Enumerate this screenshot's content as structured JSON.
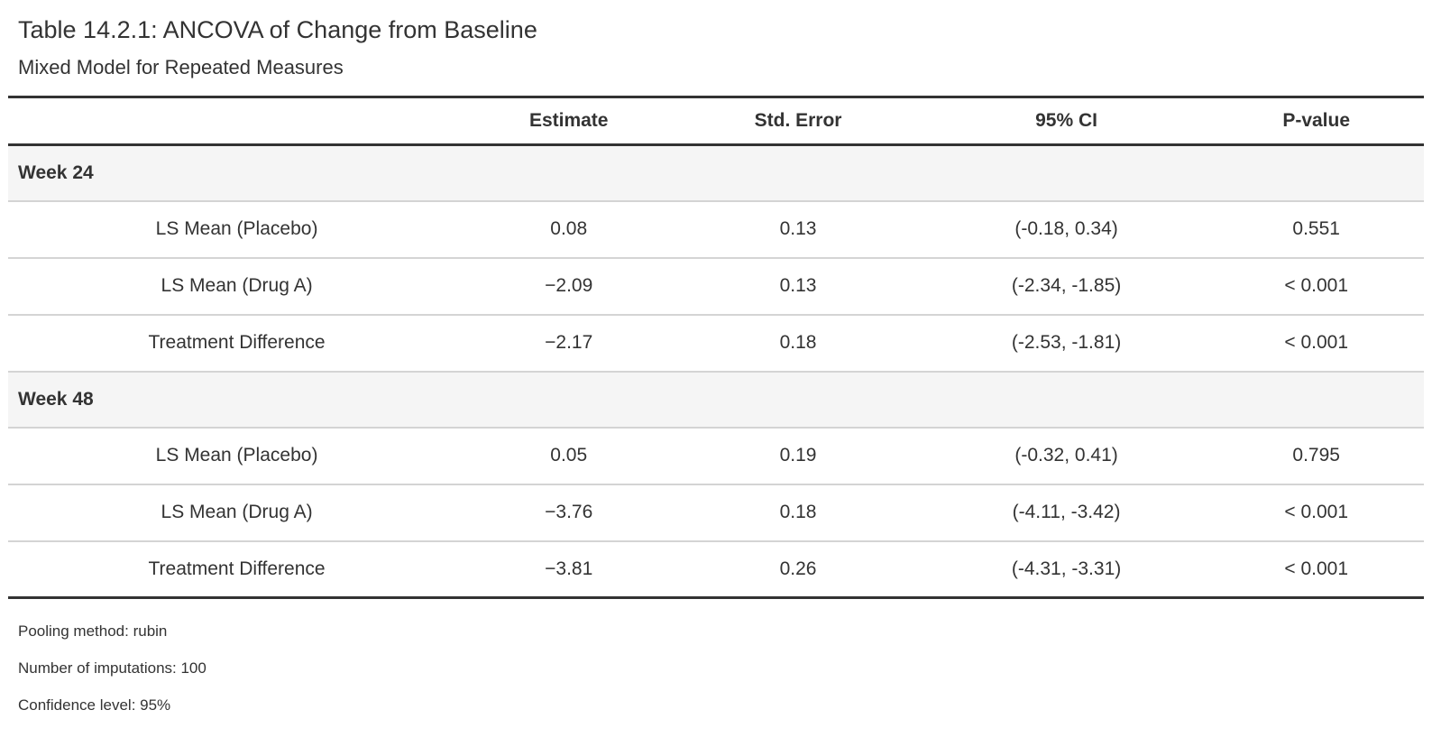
{
  "page": {
    "title": "Table 14.2.1: ANCOVA of Change from Baseline",
    "subtitle": "Mixed Model for Repeated Measures"
  },
  "table": {
    "columns": [
      "",
      "Estimate",
      "Std. Error",
      "95% CI",
      "P-value"
    ],
    "groups": [
      {
        "label": "Week 24",
        "rows": [
          {
            "label": "LS Mean (Placebo)",
            "estimate": "0.08",
            "std_error": "0.13",
            "ci": "(-0.18, 0.34)",
            "p_value": "0.551"
          },
          {
            "label": "LS Mean (Drug A)",
            "estimate": "−2.09",
            "std_error": "0.13",
            "ci": "(-2.34, -1.85)",
            "p_value": "< 0.001"
          },
          {
            "label": "Treatment Difference",
            "estimate": "−2.17",
            "std_error": "0.18",
            "ci": "(-2.53, -1.81)",
            "p_value": "< 0.001"
          }
        ]
      },
      {
        "label": "Week 48",
        "rows": [
          {
            "label": "LS Mean (Placebo)",
            "estimate": "0.05",
            "std_error": "0.19",
            "ci": "(-0.32, 0.41)",
            "p_value": "0.795"
          },
          {
            "label": "LS Mean (Drug A)",
            "estimate": "−3.76",
            "std_error": "0.18",
            "ci": "(-4.11, -3.42)",
            "p_value": "< 0.001"
          },
          {
            "label": "Treatment Difference",
            "estimate": "−3.81",
            "std_error": "0.26",
            "ci": "(-4.31, -3.31)",
            "p_value": "< 0.001"
          }
        ]
      }
    ]
  },
  "footnotes": [
    "Pooling method: rubin",
    "Number of imputations: 100",
    "Confidence level: 95%"
  ],
  "colors": {
    "text": "#333333",
    "thick_border": "#333333",
    "row_border": "#d4d4d4",
    "group_row_bg": "#f5f5f5",
    "background": "#ffffff"
  }
}
